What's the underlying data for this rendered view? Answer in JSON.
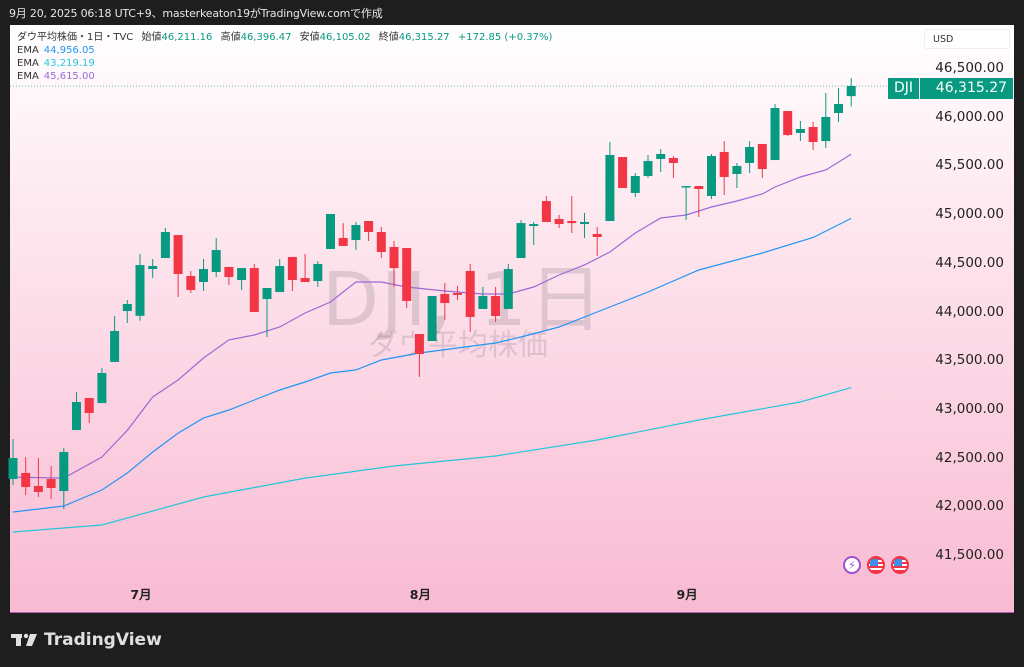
{
  "header": {
    "caption": "9月 20, 2025 06:18 UTC+9、masterkeaton19がTradingView.comで作成"
  },
  "legend": {
    "title": "ダウ平均株価・1日・TVC",
    "open_label": "始値",
    "open": "46,211.16",
    "high_label": "高値",
    "high": "46,396.47",
    "low_label": "安値",
    "low": "46,105.02",
    "close_label": "終値",
    "close": "46,315.27",
    "change": "+172.85 (+0.37%)",
    "emas": [
      {
        "label": "EMA",
        "value": "44,956.05",
        "color": "#2196f3"
      },
      {
        "label": "EMA",
        "value": "43,219.19",
        "color": "#26c6da"
      },
      {
        "label": "EMA",
        "value": "45,615.00",
        "color": "#9c6ad6"
      }
    ]
  },
  "currency": "USD",
  "price_tag": {
    "symbol": "DJI",
    "value": "46,315.27",
    "color": "#089981"
  },
  "watermark": {
    "line1": "DJI, 1日",
    "line2": "ダウ平均株価"
  },
  "footer": {
    "brand": "TradingView"
  },
  "icons": [
    "lightning-icon",
    "us-flag-icon",
    "us-flag-icon"
  ],
  "colors": {
    "up": "#089981",
    "down": "#f23645"
  },
  "chart_data": {
    "type": "candlestick",
    "ylim": [
      41300,
      46700
    ],
    "yticks": [
      "46,500.00",
      "46,000.00",
      "45,500.00",
      "45,000.00",
      "44,500.00",
      "44,000.00",
      "43,500.00",
      "43,000.00",
      "42,500.00",
      "42,000.00",
      "41,500.00"
    ],
    "ytick_values": [
      46500,
      46000,
      45500,
      45000,
      44500,
      44000,
      43500,
      43000,
      42500,
      42000,
      41500
    ],
    "xticks": [
      {
        "label": "7月",
        "date": "2025-07-01"
      },
      {
        "label": "8月",
        "date": "2025-08-01"
      },
      {
        "label": "9月",
        "date": "2025-09-02"
      }
    ],
    "grid": false,
    "last_price_line": 46315.27,
    "dates": [
      "06-16",
      "06-17",
      "06-18",
      "06-20",
      "06-23",
      "06-24",
      "06-25",
      "06-26",
      "06-27",
      "06-30",
      "07-01",
      "07-02",
      "07-03",
      "07-07",
      "07-08",
      "07-09",
      "07-10",
      "07-11",
      "07-14",
      "07-15",
      "07-16",
      "07-17",
      "07-18",
      "07-21",
      "07-22",
      "07-23",
      "07-24",
      "07-25",
      "07-28",
      "07-29",
      "07-30",
      "07-31",
      "08-01",
      "08-04",
      "08-05",
      "08-06",
      "08-07",
      "08-08",
      "08-11",
      "08-12",
      "08-13",
      "08-14",
      "08-15",
      "08-18",
      "08-19",
      "08-20",
      "08-21",
      "08-22",
      "08-25",
      "08-26",
      "08-27",
      "08-28",
      "08-29",
      "09-02",
      "09-03",
      "09-04",
      "09-05",
      "09-08",
      "09-09",
      "09-10",
      "09-11",
      "09-12",
      "09-15",
      "09-16",
      "09-17",
      "09-18",
      "09-19"
    ],
    "ohlc": [
      [
        42280,
        42691,
        42219,
        42496
      ],
      [
        42342,
        42506,
        42116,
        42198
      ],
      [
        42209,
        42496,
        42096,
        42147
      ],
      [
        42280,
        42414,
        42075,
        42188
      ],
      [
        42157,
        42598,
        41972,
        42557
      ],
      [
        42783,
        43174,
        42783,
        43071
      ],
      [
        43112,
        43112,
        42855,
        42958
      ],
      [
        43060,
        43420,
        43060,
        43369
      ],
      [
        43482,
        43954,
        43482,
        43800
      ],
      [
        44005,
        44118,
        43882,
        44077
      ],
      [
        43956,
        44590,
        43905,
        44477
      ],
      [
        44436,
        44539,
        44344,
        44467
      ],
      [
        44549,
        44857,
        44549,
        44816
      ],
      [
        44785,
        44785,
        44149,
        44385
      ],
      [
        44364,
        44416,
        44190,
        44221
      ],
      [
        44303,
        44539,
        44210,
        44436
      ],
      [
        44406,
        44755,
        44354,
        44631
      ],
      [
        44457,
        44457,
        44272,
        44354
      ],
      [
        44323,
        44446,
        44221,
        44446
      ],
      [
        44446,
        44488,
        43995,
        43995
      ],
      [
        44128,
        44241,
        43738,
        44241
      ],
      [
        44200,
        44539,
        44200,
        44467
      ],
      [
        44560,
        44560,
        44210,
        44323
      ],
      [
        44344,
        44590,
        44303,
        44303
      ],
      [
        44313,
        44518,
        44252,
        44488
      ],
      [
        44642,
        45001,
        44642,
        45001
      ],
      [
        44755,
        44908,
        44673,
        44673
      ],
      [
        44734,
        44919,
        44632,
        44888
      ],
      [
        44929,
        44929,
        44724,
        44816
      ],
      [
        44816,
        44868,
        44549,
        44611
      ],
      [
        44662,
        44724,
        44252,
        44446
      ],
      [
        44652,
        44652,
        44036,
        44108
      ],
      [
        43769,
        43769,
        43328,
        43564
      ],
      [
        43697,
        44159,
        43697,
        44159
      ],
      [
        44180,
        44293,
        43913,
        44087
      ],
      [
        44190,
        44262,
        44118,
        44170
      ],
      [
        44416,
        44488,
        43790,
        43944
      ],
      [
        44026,
        44252,
        44026,
        44159
      ],
      [
        44159,
        44252,
        43892,
        43954
      ],
      [
        44026,
        44488,
        44026,
        44436
      ],
      [
        44549,
        44940,
        44549,
        44908
      ],
      [
        44878,
        44919,
        44683,
        44898
      ],
      [
        45134,
        45186,
        44919,
        44919
      ],
      [
        44950,
        44991,
        44857,
        44898
      ],
      [
        44929,
        45186,
        44806,
        44908
      ],
      [
        44898,
        45012,
        44755,
        44919
      ],
      [
        44796,
        44868,
        44570,
        44765
      ],
      [
        44929,
        45740,
        44929,
        45607
      ],
      [
        45586,
        45586,
        45268,
        45268
      ],
      [
        45217,
        45422,
        45176,
        45391
      ],
      [
        45391,
        45607,
        45371,
        45545
      ],
      [
        45566,
        45668,
        45432,
        45617
      ],
      [
        45576,
        45597,
        45371,
        45525
      ],
      [
        45278,
        45288,
        44940,
        45288
      ],
      [
        45288,
        45288,
        44970,
        45258
      ],
      [
        45186,
        45617,
        45155,
        45597
      ],
      [
        45638,
        45750,
        45196,
        45381
      ],
      [
        45412,
        45525,
        45268,
        45494
      ],
      [
        45525,
        45750,
        45422,
        45689
      ],
      [
        45720,
        45720,
        45371,
        45463
      ],
      [
        45555,
        46130,
        45555,
        46089
      ],
      [
        46058,
        46058,
        45802,
        45812
      ],
      [
        45833,
        45956,
        45750,
        45874
      ],
      [
        45894,
        45946,
        45658,
        45740
      ],
      [
        45750,
        46243,
        45679,
        45997
      ],
      [
        46038,
        46295,
        45946,
        46130
      ],
      [
        46211.16,
        46396.47,
        46105.02,
        46315.27
      ]
    ],
    "ema_series": [
      {
        "color": "#9c6ad6",
        "last": 45615.0,
        "points": [
          [
            "06-16",
            42300
          ],
          [
            "06-23",
            42290
          ],
          [
            "06-26",
            42506
          ],
          [
            "06-30",
            42780
          ],
          [
            "07-02",
            43122
          ],
          [
            "07-07",
            43297
          ],
          [
            "07-09",
            43523
          ],
          [
            "07-11",
            43708
          ],
          [
            "07-15",
            43759
          ],
          [
            "07-17",
            43841
          ],
          [
            "07-21",
            43985
          ],
          [
            "07-23",
            44098
          ],
          [
            "07-25",
            44303
          ],
          [
            "07-29",
            44303
          ],
          [
            "07-31",
            44252
          ],
          [
            "08-05",
            44210
          ],
          [
            "08-08",
            44180
          ],
          [
            "08-12",
            44180
          ],
          [
            "08-14",
            44252
          ],
          [
            "08-18",
            44375
          ],
          [
            "08-20",
            44478
          ],
          [
            "08-22",
            44611
          ],
          [
            "08-26",
            44806
          ],
          [
            "08-28",
            44960
          ],
          [
            "09-02",
            44991
          ],
          [
            "09-04",
            45073
          ],
          [
            "09-08",
            45134
          ],
          [
            "09-10",
            45206
          ],
          [
            "09-11",
            45278
          ],
          [
            "09-15",
            45381
          ],
          [
            "09-17",
            45453
          ],
          [
            "09-19",
            45615
          ]
        ]
      },
      {
        "color": "#2196f3",
        "last": 44956.05,
        "points": [
          [
            "06-16",
            41941
          ],
          [
            "06-23",
            42003
          ],
          [
            "06-26",
            42167
          ],
          [
            "06-30",
            42342
          ],
          [
            "07-02",
            42557
          ],
          [
            "07-07",
            42752
          ],
          [
            "07-09",
            42906
          ],
          [
            "07-11",
            42989
          ],
          [
            "07-15",
            43091
          ],
          [
            "07-17",
            43194
          ],
          [
            "07-21",
            43276
          ],
          [
            "07-23",
            43369
          ],
          [
            "07-25",
            43400
          ],
          [
            "07-29",
            43502
          ],
          [
            "08-01",
            43574
          ],
          [
            "08-06",
            43625
          ],
          [
            "08-11",
            43677
          ],
          [
            "08-13",
            43738
          ],
          [
            "08-18",
            43841
          ],
          [
            "08-21",
            43995
          ],
          [
            "08-27",
            44200
          ],
          [
            "09-03",
            44426
          ],
          [
            "09-10",
            44601
          ],
          [
            "09-16",
            44760
          ],
          [
            "09-19",
            44956
          ]
        ]
      },
      {
        "color": "#26c6da",
        "last": 43219.19,
        "points": [
          [
            "06-16",
            41736
          ],
          [
            "06-26",
            41808
          ],
          [
            "07-09",
            42095
          ],
          [
            "07-21",
            42290
          ],
          [
            "07-30",
            42414
          ],
          [
            "08-11",
            42516
          ],
          [
            "08-21",
            42681
          ],
          [
            "09-03",
            42886
          ],
          [
            "09-15",
            43071
          ],
          [
            "09-19",
            43219
          ]
        ]
      }
    ]
  }
}
